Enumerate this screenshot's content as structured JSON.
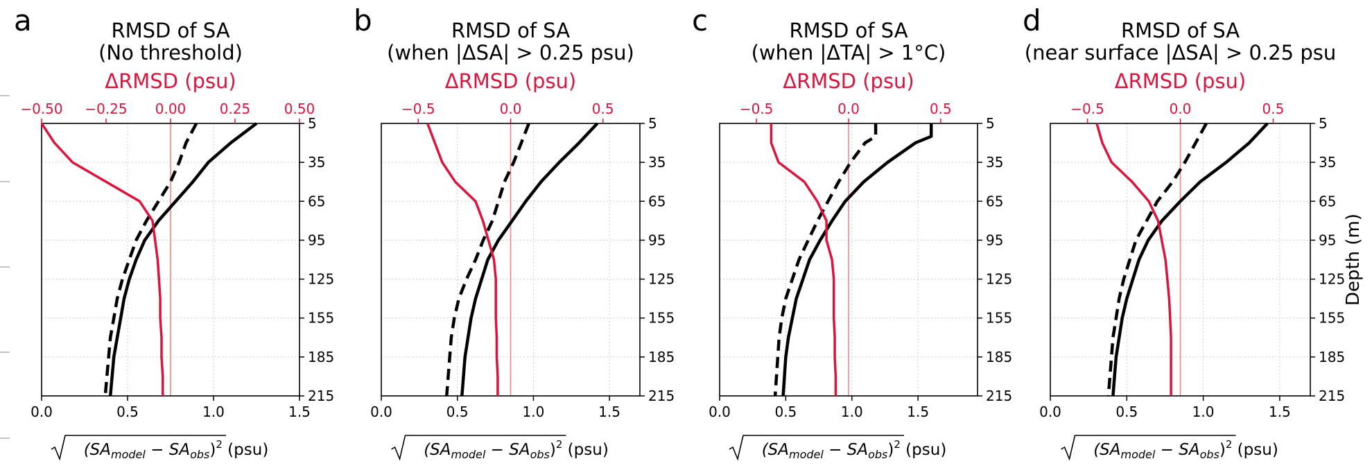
{
  "colors": {
    "red": "#dc143c",
    "black": "#000000",
    "grid": "#cccccc",
    "zero_line": "#f08080"
  },
  "chart_data": [
    {
      "type": "line",
      "panel_label": "a",
      "title_line1": "RMSD of SA",
      "title_line2": "(No threshold)",
      "top_xlabel": "ΔRMSD (psu)",
      "bottom_xlabel": "√(SAmodel − SAobs)² (psu)",
      "ylabel": "",
      "bottom_xlim": [
        0,
        1.5
      ],
      "bottom_xticks": [
        "0.0",
        "0.5",
        "1.0",
        "1.5"
      ],
      "top_xlim": [
        -0.5,
        0.5
      ],
      "top_xticks": [
        "−0.50",
        "−0.25",
        "0.00",
        "0.25",
        "0.50"
      ],
      "top_xtick_values": [
        -0.5,
        -0.25,
        0,
        0.25,
        0.5
      ],
      "ylim": [
        5,
        215
      ],
      "yticks": [
        5,
        35,
        65,
        95,
        125,
        155,
        185,
        215
      ],
      "depth": [
        5,
        20,
        35,
        50,
        65,
        80,
        95,
        110,
        125,
        140,
        155,
        170,
        185,
        200,
        215
      ],
      "series": [
        {
          "style": "solid",
          "axis": "bottom",
          "values": [
            1.25,
            1.1,
            0.97,
            0.88,
            0.78,
            0.68,
            0.6,
            0.55,
            0.51,
            0.48,
            0.46,
            0.44,
            0.42,
            0.41,
            0.4
          ]
        },
        {
          "style": "dashed",
          "axis": "bottom",
          "values": [
            0.9,
            0.84,
            0.8,
            0.75,
            0.68,
            0.61,
            0.55,
            0.51,
            0.47,
            0.44,
            0.42,
            0.4,
            0.39,
            0.38,
            0.37
          ]
        },
        {
          "style": "solid",
          "color": "red",
          "axis": "top",
          "values": [
            -0.5,
            -0.45,
            -0.38,
            -0.25,
            -0.12,
            -0.07,
            -0.06,
            -0.05,
            -0.045,
            -0.04,
            -0.04,
            -0.035,
            -0.035,
            -0.03,
            -0.03
          ]
        }
      ]
    },
    {
      "type": "line",
      "panel_label": "b",
      "title_line1": "RMSD of SA",
      "title_line2": "(when |ΔSA| > 0.25 psu)",
      "top_xlabel": "ΔRMSD (psu)",
      "bottom_xlabel": "√(SAmodel − SAobs)² (psu)",
      "ylabel": "",
      "bottom_xlim": [
        0,
        1.7
      ],
      "bottom_xticks": [
        "0.0",
        "0.5",
        "1.0",
        "1.5"
      ],
      "top_xlim": [
        -0.7,
        0.7
      ],
      "top_xticks": [
        "−0.5",
        "0.0",
        "0.5"
      ],
      "top_xtick_values": [
        -0.5,
        0,
        0.5
      ],
      "ylim": [
        5,
        215
      ],
      "yticks": [
        5,
        35,
        65,
        95,
        125,
        155,
        185,
        215
      ],
      "depth": [
        5,
        20,
        35,
        50,
        65,
        80,
        95,
        110,
        125,
        140,
        155,
        170,
        185,
        200,
        215
      ],
      "series": [
        {
          "style": "solid",
          "axis": "bottom",
          "values": [
            1.42,
            1.3,
            1.17,
            1.05,
            0.95,
            0.86,
            0.77,
            0.7,
            0.66,
            0.62,
            0.59,
            0.57,
            0.55,
            0.54,
            0.53
          ]
        },
        {
          "style": "dashed",
          "axis": "bottom",
          "values": [
            0.97,
            0.92,
            0.87,
            0.81,
            0.77,
            0.73,
            0.67,
            0.62,
            0.56,
            0.51,
            0.48,
            0.46,
            0.45,
            0.44,
            0.43
          ]
        },
        {
          "style": "solid",
          "color": "red",
          "axis": "top",
          "values": [
            -0.45,
            -0.41,
            -0.37,
            -0.3,
            -0.19,
            -0.15,
            -0.12,
            -0.09,
            -0.08,
            -0.08,
            -0.08,
            -0.075,
            -0.075,
            -0.07,
            -0.07
          ]
        }
      ]
    },
    {
      "type": "line",
      "panel_label": "c",
      "title_line1": "RMSD of SA",
      "title_line2": "(when |ΔTA| > 1°C)",
      "top_xlabel": "ΔRMSD (psu)",
      "bottom_xlabel": "√(SAmodel − SAobs)² (psu)",
      "ylabel": "",
      "bottom_xlim": [
        0,
        1.95
      ],
      "bottom_xticks": [
        "0.0",
        "0.5",
        "1.0",
        "1.5"
      ],
      "top_xlim": [
        -0.7,
        0.7
      ],
      "top_xticks": [
        "−0.5",
        "0.0",
        "0.5"
      ],
      "top_xtick_values": [
        -0.5,
        0,
        0.5
      ],
      "ylim": [
        5,
        215
      ],
      "yticks": [
        5,
        35,
        65,
        95,
        125,
        155,
        185,
        215
      ],
      "depth": [
        5,
        15,
        20,
        35,
        50,
        65,
        80,
        95,
        110,
        125,
        140,
        155,
        170,
        185,
        200,
        215
      ],
      "series": [
        {
          "style": "solid",
          "axis": "bottom",
          "values": [
            1.6,
            1.6,
            1.48,
            1.27,
            1.09,
            0.95,
            0.85,
            0.76,
            0.68,
            0.63,
            0.58,
            0.55,
            0.52,
            0.5,
            0.49,
            0.48
          ]
        },
        {
          "style": "dashed",
          "axis": "bottom",
          "values": [
            1.18,
            1.18,
            1.1,
            0.99,
            0.9,
            0.82,
            0.74,
            0.67,
            0.6,
            0.55,
            0.5,
            0.47,
            0.45,
            0.44,
            0.43,
            0.42
          ]
        },
        {
          "style": "solid",
          "color": "red",
          "axis": "top",
          "values": [
            -0.42,
            -0.42,
            -0.42,
            -0.38,
            -0.24,
            -0.17,
            -0.12,
            -0.12,
            -0.09,
            -0.08,
            -0.08,
            -0.08,
            -0.075,
            -0.075,
            -0.07,
            -0.07
          ]
        }
      ]
    },
    {
      "type": "line",
      "panel_label": "d",
      "title_line1": "RMSD of SA",
      "title_line2": "(near surface |ΔSA| > 0.25 psu",
      "top_xlabel": "ΔRMSD (psu)",
      "bottom_xlabel": "√(SAmodel − SAobs)² (psu)",
      "ylabel": "Depth (m)",
      "bottom_xlim": [
        0,
        1.7
      ],
      "bottom_xticks": [
        "0.0",
        "0.5",
        "1.0",
        "1.5"
      ],
      "top_xlim": [
        -0.7,
        0.7
      ],
      "top_xticks": [
        "−0.5",
        "0.0",
        "0.5"
      ],
      "top_xtick_values": [
        -0.5,
        0,
        0.5
      ],
      "ylim": [
        5,
        215
      ],
      "yticks": [
        5,
        35,
        65,
        95,
        125,
        155,
        185,
        215
      ],
      "depth": [
        5,
        20,
        35,
        50,
        65,
        80,
        95,
        110,
        125,
        140,
        155,
        170,
        185,
        200,
        215
      ],
      "series": [
        {
          "style": "solid",
          "axis": "bottom",
          "values": [
            1.42,
            1.3,
            1.15,
            0.98,
            0.85,
            0.73,
            0.64,
            0.58,
            0.54,
            0.5,
            0.47,
            0.45,
            0.43,
            0.42,
            0.41
          ]
        },
        {
          "style": "dashed",
          "axis": "bottom",
          "values": [
            1.02,
            0.95,
            0.88,
            0.8,
            0.7,
            0.63,
            0.56,
            0.52,
            0.48,
            0.45,
            0.43,
            0.41,
            0.4,
            0.39,
            0.38
          ]
        },
        {
          "style": "solid",
          "color": "red",
          "axis": "top",
          "values": [
            -0.45,
            -0.42,
            -0.37,
            -0.26,
            -0.17,
            -0.12,
            -0.1,
            -0.08,
            -0.07,
            -0.06,
            -0.055,
            -0.05,
            -0.05,
            -0.05,
            -0.05
          ]
        }
      ]
    }
  ]
}
